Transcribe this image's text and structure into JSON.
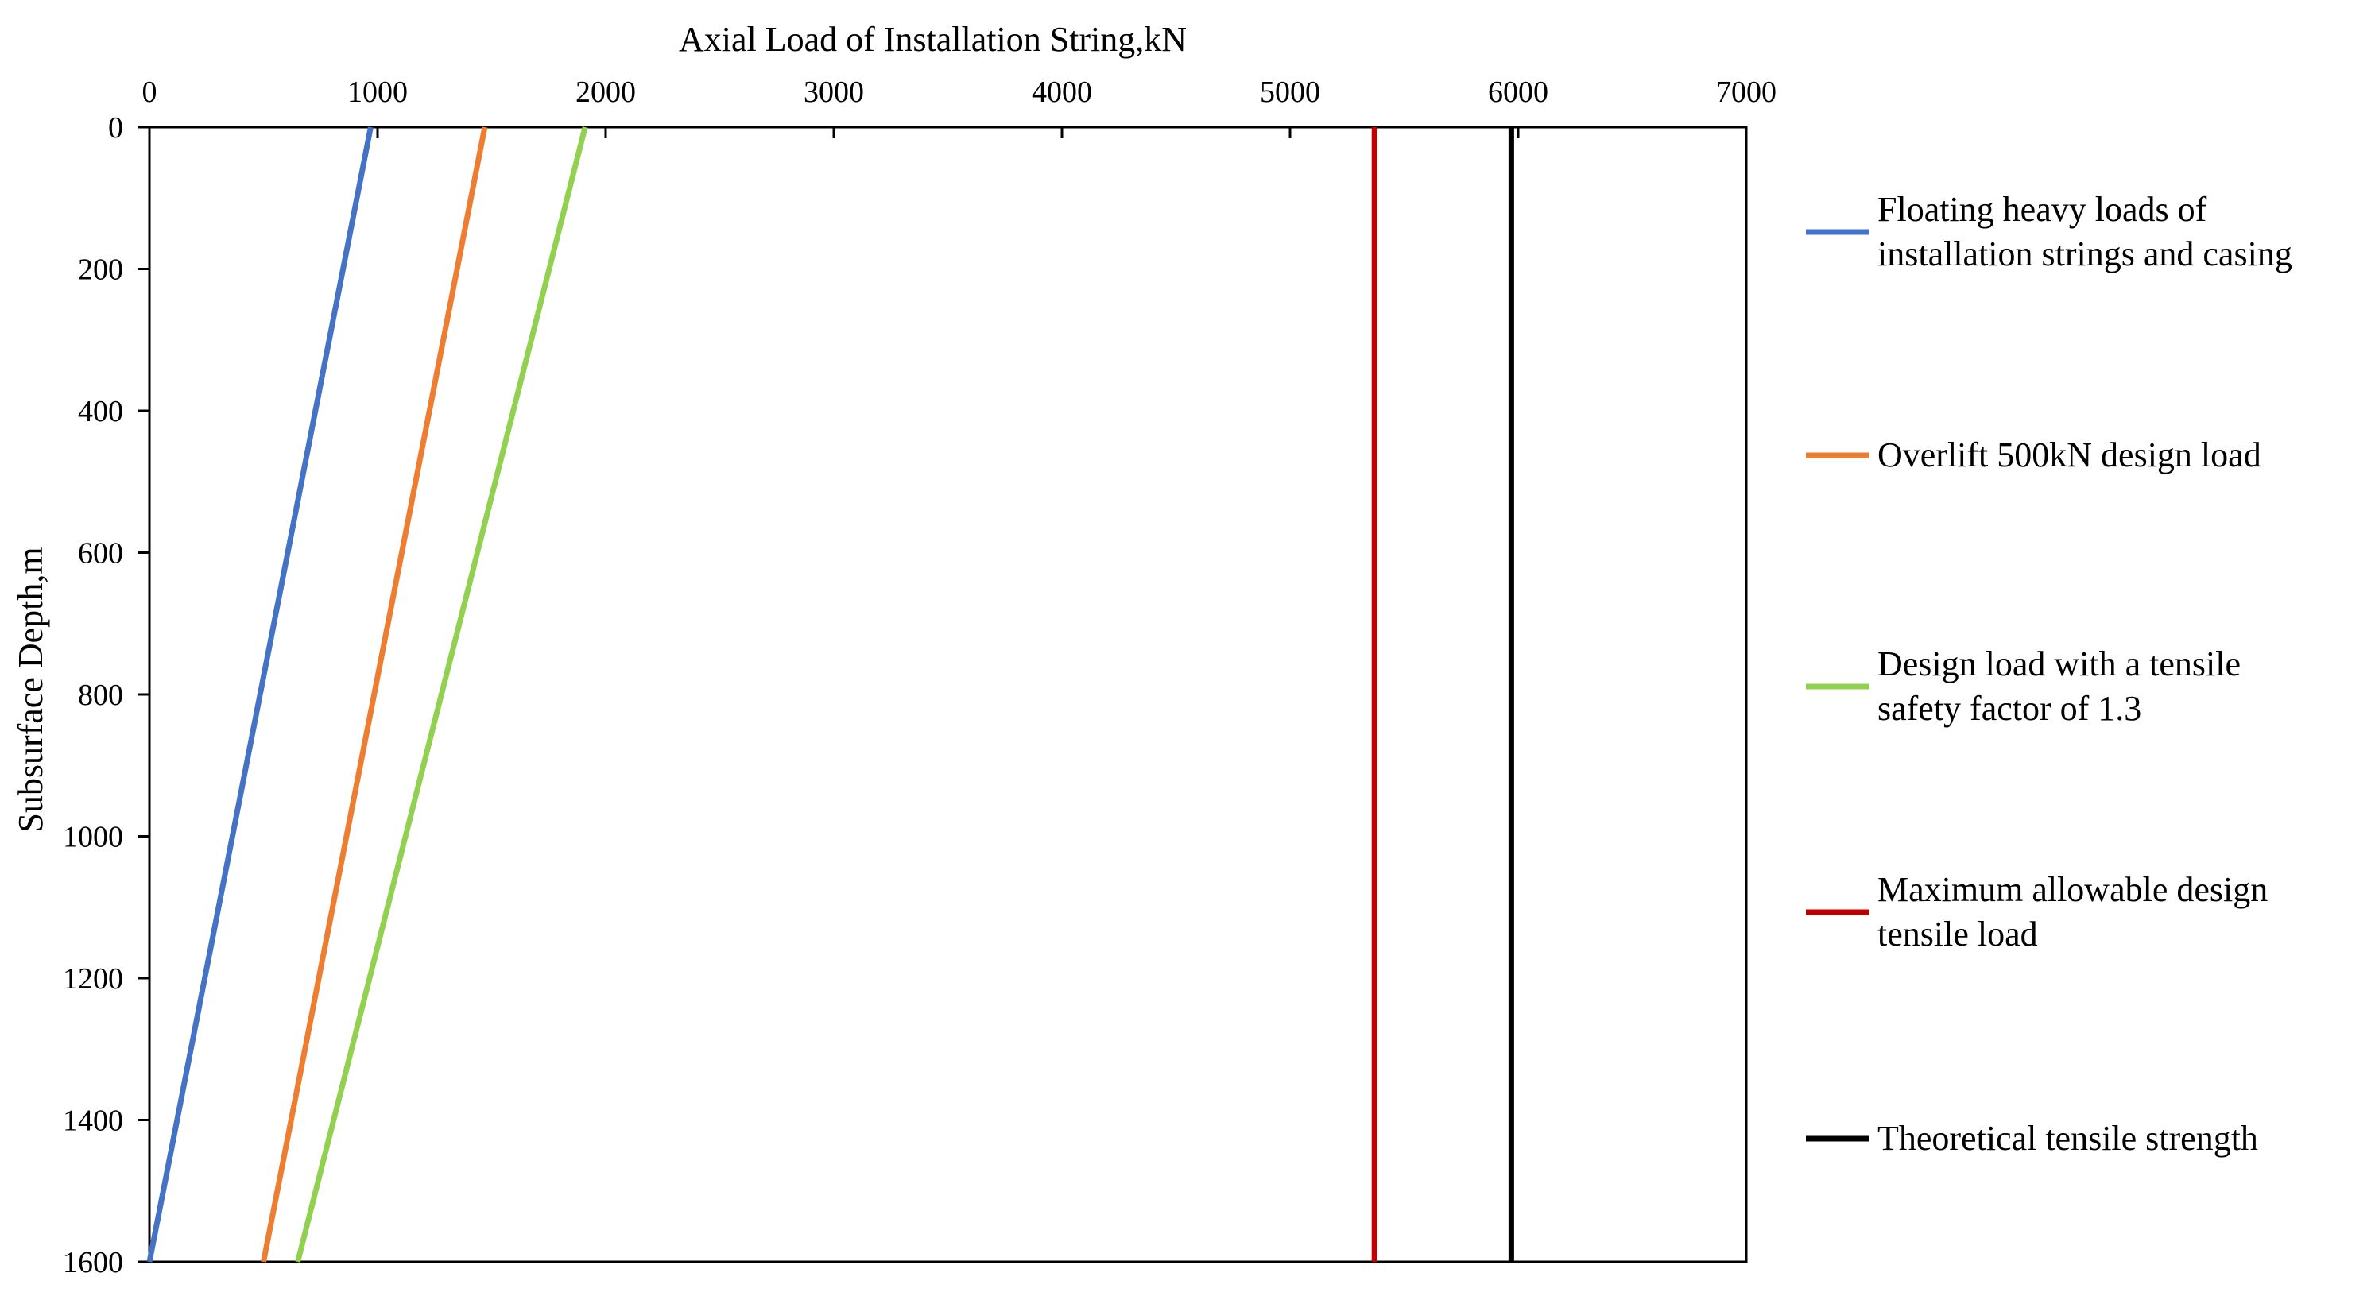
{
  "chart_data": {
    "type": "line",
    "title": "",
    "xlabel": "Axial Load of Installation String,kN",
    "ylabel": "Subsurface Depth,m",
    "xlim": [
      0,
      7000
    ],
    "ylim": [
      0,
      1600
    ],
    "y_inverted": true,
    "x_axis_position": "top",
    "x_ticks": [
      "0",
      "1000",
      "2000",
      "3000",
      "4000",
      "5000",
      "6000",
      "7000"
    ],
    "y_ticks": [
      "0",
      "200",
      "400",
      "600",
      "800",
      "1000",
      "1200",
      "1400",
      "1600"
    ],
    "grid": false,
    "legend_position": "right",
    "series": [
      {
        "name": "Floating heavy loads of installation strings and casing",
        "legend_lines": [
          "Floating heavy loads of",
          "installation strings and casing"
        ],
        "color": "#4472C4",
        "x": [
          970,
          0
        ],
        "y": [
          0,
          1600
        ]
      },
      {
        "name": "Overlift 500kN design load",
        "legend_lines": [
          "Overlift 500kN design load"
        ],
        "color": "#ED7D31",
        "x": [
          1470,
          500
        ],
        "y": [
          0,
          1600
        ]
      },
      {
        "name": "Design load with a tensile safety factor of 1.3",
        "legend_lines": [
          "Design load with a tensile",
          "safety factor of 1.3"
        ],
        "color": "#92D050",
        "x": [
          1910,
          650
        ],
        "y": [
          0,
          1600
        ]
      },
      {
        "name": "Maximum allowable design tensile load",
        "legend_lines": [
          "Maximum allowable design",
          "tensile load"
        ],
        "color": "#C00000",
        "x": [
          5370,
          5370
        ],
        "y": [
          0,
          1600
        ]
      },
      {
        "name": "Theoretical tensile strength",
        "legend_lines": [
          "Theoretical tensile strength"
        ],
        "color": "#000000",
        "x": [
          5970,
          5970
        ],
        "y": [
          0,
          1600
        ]
      }
    ]
  }
}
